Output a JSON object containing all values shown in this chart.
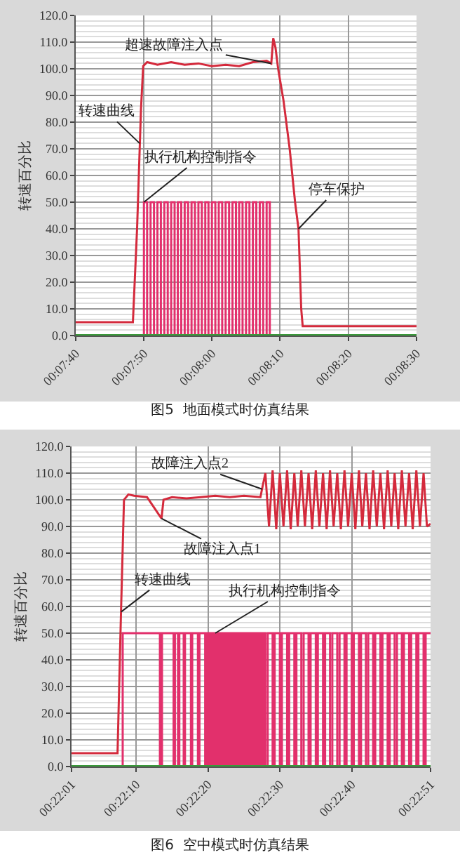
{
  "chart_data": [
    {
      "type": "line",
      "title": "图5  地面模式时仿真结果",
      "ylabel": "转速百分比",
      "grid": true,
      "xlim": [
        0.12778,
        0.14167
      ],
      "xticks": [
        {
          "value": 0.12778,
          "label": "00:07:40"
        },
        {
          "value": 0.13056,
          "label": "00:07:50"
        },
        {
          "value": 0.13333,
          "label": "00:08:00"
        },
        {
          "value": 0.13611,
          "label": "00:08:10"
        },
        {
          "value": 0.13889,
          "label": "00:08:20"
        },
        {
          "value": 0.14167,
          "label": "00:08:30"
        }
      ],
      "ylim": [
        0,
        120
      ],
      "yticks": [
        {
          "value": 0,
          "label": "0.0"
        },
        {
          "value": 10,
          "label": "10.0"
        },
        {
          "value": 20,
          "label": "20.0"
        },
        {
          "value": 30,
          "label": "30.0"
        },
        {
          "value": 40,
          "label": "40.0"
        },
        {
          "value": 50,
          "label": "50.0"
        },
        {
          "value": 60,
          "label": "60.0"
        },
        {
          "value": 70,
          "label": "70.0"
        },
        {
          "value": 80,
          "label": "80.0"
        },
        {
          "value": 90,
          "label": "90.0"
        },
        {
          "value": 100,
          "label": "100.0"
        },
        {
          "value": 110,
          "label": "110.0"
        },
        {
          "value": 120,
          "label": "120.0"
        }
      ],
      "series": [
        {
          "type": "step",
          "color": "#e2306c",
          "x": [
            0.13056,
            0.13056,
            0.13069,
            0.13083,
            0.13097,
            0.13111,
            0.13125,
            0.13139,
            0.13153,
            0.13167,
            0.13181,
            0.13194,
            0.13208,
            0.13222,
            0.13236,
            0.1325,
            0.13264,
            0.13278,
            0.13292,
            0.13306,
            0.13319,
            0.13333,
            0.13347,
            0.13361,
            0.13375,
            0.13389,
            0.13403,
            0.13417,
            0.13431,
            0.13444,
            0.13458,
            0.13472,
            0.13486,
            0.135,
            0.13514,
            0.13528,
            0.13542,
            0.13556,
            0.13569
          ],
          "values": [
            0,
            50,
            0,
            50,
            0,
            50,
            0,
            50,
            0,
            50,
            0,
            50,
            0,
            50,
            0,
            50,
            0,
            50,
            0,
            50,
            0,
            50,
            0,
            50,
            0,
            50,
            0,
            50,
            0,
            50,
            0,
            50,
            0,
            50,
            0,
            50,
            0,
            50,
            0
          ]
        },
        {
          "color": "#d42a3c",
          "x": [
            0.12778,
            0.13011,
            0.13028,
            0.13044,
            0.13053,
            0.13069,
            0.13111,
            0.13167,
            0.13222,
            0.13278,
            0.13333,
            0.13389,
            0.13444,
            0.135,
            0.13556,
            0.13575,
            0.13583,
            0.13592,
            0.13603,
            0.13625,
            0.1365,
            0.13672,
            0.13686,
            0.13697,
            0.13703,
            0.14167
          ],
          "values": [
            5,
            5,
            40,
            85,
            101,
            102.5,
            101.5,
            102.5,
            101.5,
            102,
            101,
            101.5,
            101,
            102.5,
            103,
            102,
            111.5,
            108,
            100,
            88,
            70,
            50,
            40,
            10,
            3.5,
            3.5
          ]
        }
      ],
      "ref_lines": [
        {
          "axis": "y",
          "value": 0,
          "color": "#3a9a3a"
        }
      ],
      "annotations": [
        {
          "text": "超速故障注入点",
          "x": 0.13575,
          "y": 102
        },
        {
          "text": "转速曲线",
          "x": 0.13039,
          "y": 72
        },
        {
          "text": "执行机构控制指令",
          "x": 0.13056,
          "y": 50
        },
        {
          "text": "停车保护",
          "x": 0.13686,
          "y": 40
        }
      ]
    },
    {
      "type": "line",
      "title": "图6  空中模式时仿真结果",
      "ylabel": "转速百分比",
      "grid": true,
      "xlim": [
        0.36694,
        0.38083
      ],
      "xticks": [
        {
          "value": 0.36694,
          "label": "00:22:01"
        },
        {
          "value": 0.36944,
          "label": "00:22:10"
        },
        {
          "value": 0.37222,
          "label": "00:22:20"
        },
        {
          "value": 0.375,
          "label": "00:22:30"
        },
        {
          "value": 0.37778,
          "label": "00:22:40"
        },
        {
          "value": 0.38083,
          "label": "00:22:51"
        }
      ],
      "ylim": [
        0,
        120
      ],
      "yticks": [
        {
          "value": 0,
          "label": "0.0"
        },
        {
          "value": 10,
          "label": "10.0"
        },
        {
          "value": 20,
          "label": "20.0"
        },
        {
          "value": 30,
          "label": "30.0"
        },
        {
          "value": 40,
          "label": "40.0"
        },
        {
          "value": 50,
          "label": "50.0"
        },
        {
          "value": 60,
          "label": "60.0"
        },
        {
          "value": 70,
          "label": "70.0"
        },
        {
          "value": 80,
          "label": "80.0"
        },
        {
          "value": 90,
          "label": "90.0"
        },
        {
          "value": 100,
          "label": "100.0"
        },
        {
          "value": 110,
          "label": "110.0"
        },
        {
          "value": 120,
          "label": "120.0"
        }
      ],
      "series": [
        {
          "type": "step",
          "color": "#e2306c",
          "x": [
            0.36892,
            0.36892,
            0.37036,
            0.37044,
            0.37089,
            0.37094,
            0.37106,
            0.37111,
            0.37128,
            0.37133,
            0.37156,
            0.37161,
            0.37183,
            0.37189,
            0.37211,
            0.37217,
            0.37222,
            0.37229,
            0.37236,
            0.37243,
            0.3725,
            0.37257,
            0.37264,
            0.37271,
            0.37278,
            0.37285,
            0.37292,
            0.37299,
            0.37306,
            0.37313,
            0.37319,
            0.37326,
            0.37333,
            0.3734,
            0.37347,
            0.37354,
            0.37361,
            0.37368,
            0.37375,
            0.37382,
            0.37389,
            0.37396,
            0.37403,
            0.3741,
            0.37417,
            0.37424,
            0.37431,
            0.37438,
            0.37444,
            0.37453,
            0.37472,
            0.3748,
            0.375,
            0.37508,
            0.37528,
            0.37536,
            0.37556,
            0.37564,
            0.37583,
            0.37592,
            0.37611,
            0.37619,
            0.37639,
            0.37647,
            0.37667,
            0.37675,
            0.37694,
            0.37703,
            0.37722,
            0.37731,
            0.3775,
            0.37758,
            0.37778,
            0.37786,
            0.37806,
            0.37814,
            0.37833,
            0.37842,
            0.37861,
            0.37869,
            0.37889,
            0.37897,
            0.37917,
            0.37925,
            0.37944,
            0.37953,
            0.37972,
            0.3798,
            0.38,
            0.38008,
            0.38028,
            0.38036,
            0.38056,
            0.38064,
            0.38083
          ],
          "values": [
            0,
            50,
            0,
            50,
            0,
            50,
            0,
            50,
            0,
            50,
            0,
            50,
            0,
            50,
            0,
            50,
            0,
            50,
            0,
            50,
            0,
            50,
            0,
            50,
            0,
            50,
            0,
            50,
            0,
            50,
            0,
            50,
            0,
            50,
            0,
            50,
            0,
            50,
            0,
            50,
            0,
            50,
            0,
            50,
            0,
            50,
            0,
            50,
            0,
            50,
            0,
            50,
            0,
            50,
            0,
            50,
            0,
            50,
            0,
            50,
            0,
            50,
            0,
            50,
            0,
            50,
            0,
            50,
            0,
            50,
            0,
            50,
            0,
            50,
            0,
            50,
            0,
            50,
            0,
            50,
            0,
            50,
            0,
            50,
            0,
            50,
            0,
            50,
            0,
            50,
            0,
            50,
            0,
            50,
            50
          ]
        },
        {
          "color": "#d42a3c",
          "x": [
            0.36694,
            0.36872,
            0.36886,
            0.36897,
            0.36914,
            0.36936,
            0.36986,
            0.37014,
            0.37042,
            0.3705,
            0.37083,
            0.37139,
            0.37194,
            0.3725,
            0.37306,
            0.37361,
            0.37425,
            0.37431,
            0.37444,
            0.37458,
            0.37472,
            0.37486,
            0.375,
            0.37514,
            0.37528,
            0.37542,
            0.37556,
            0.37569,
            0.37583,
            0.37597,
            0.37611,
            0.37625,
            0.37639,
            0.37653,
            0.37667,
            0.37681,
            0.37694,
            0.37708,
            0.37722,
            0.37736,
            0.3775,
            0.37764,
            0.37778,
            0.37792,
            0.37806,
            0.37819,
            0.37833,
            0.37847,
            0.37861,
            0.37875,
            0.37889,
            0.37903,
            0.37917,
            0.37931,
            0.37944,
            0.37958,
            0.37972,
            0.37986,
            0.38,
            0.38014,
            0.38028,
            0.38042,
            0.38056,
            0.38069,
            0.38083
          ],
          "values": [
            5,
            5,
            60,
            100,
            102,
            101.5,
            101,
            97,
            93,
            100,
            101,
            100.5,
            101,
            101.5,
            101,
            101.5,
            101,
            104,
            110,
            90,
            111,
            89,
            110,
            90,
            111,
            89,
            110,
            90,
            111,
            90,
            110,
            89,
            111,
            90,
            110,
            89,
            111,
            90,
            110,
            89,
            111,
            90,
            110,
            89,
            111,
            90,
            110,
            89,
            111,
            90,
            110,
            89,
            111,
            90,
            110,
            89,
            111,
            90,
            110,
            89,
            111,
            90,
            110,
            90,
            91
          ]
        }
      ],
      "ref_lines": [
        {
          "axis": "y",
          "value": 0,
          "color": "#3a9a3a"
        }
      ],
      "annotations": [
        {
          "text": "故障注入点2",
          "x": 0.37431,
          "y": 104
        },
        {
          "text": "故障注入点1",
          "x": 0.37042,
          "y": 93
        },
        {
          "text": "转速曲线",
          "x": 0.36886,
          "y": 58
        },
        {
          "text": "执行机构控制指令",
          "x": 0.3725,
          "y": 50
        }
      ]
    }
  ]
}
